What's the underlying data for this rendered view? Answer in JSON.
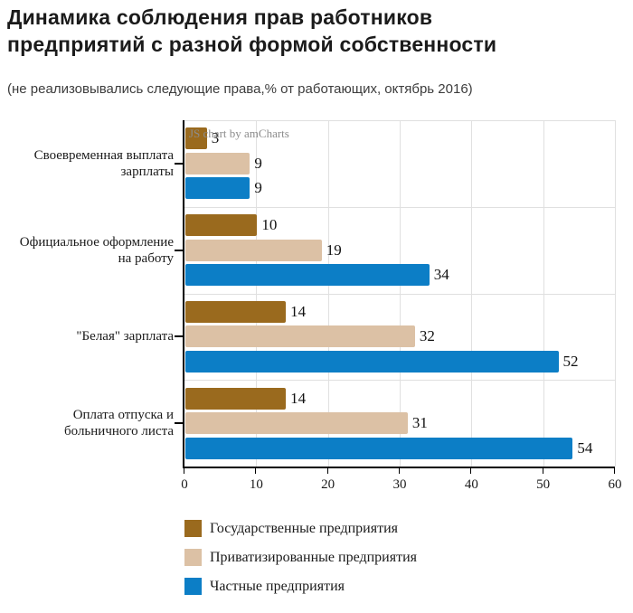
{
  "header": {
    "title_lines": [
      "Динамика соблюдения прав работников",
      "предприятий с разной формой собственности"
    ],
    "subtitle": "(не реализовывались следующие права,% от работающих, октябрь 2016)"
  },
  "watermark": "JS chart by amCharts",
  "colors": {
    "grid": "#e0e0e0",
    "axis": "#000000",
    "watermark": "#8c8c8c"
  },
  "chart_data": {
    "type": "bar",
    "orientation": "horizontal",
    "title": "Динамика соблюдения прав работников предприятий с разной формой собственности",
    "subtitle": "(не реализовывались следующие права,% от работающих, октябрь 2016)",
    "categories": [
      "Своевременная выплата\nзарплаты",
      "Официальное оформление\nна работу",
      "\"Белая\" зарплата",
      "Оплата отпуска и\nбольничного листа"
    ],
    "series": [
      {
        "name": "Государственные предприятия",
        "color": "#9A6A1E",
        "values": [
          3,
          10,
          14,
          14
        ]
      },
      {
        "name": "Приватизированные предприятия",
        "color": "#DCC1A5",
        "values": [
          9,
          19,
          32,
          31
        ]
      },
      {
        "name": "Частные предприятия",
        "color": "#0C7EC6",
        "values": [
          9,
          34,
          52,
          54
        ]
      }
    ],
    "xlim": [
      0,
      60
    ],
    "xticks": [
      0,
      10,
      20,
      30,
      40,
      50,
      60
    ],
    "grid": true,
    "value_labels": true,
    "legend_position": "bottom"
  }
}
